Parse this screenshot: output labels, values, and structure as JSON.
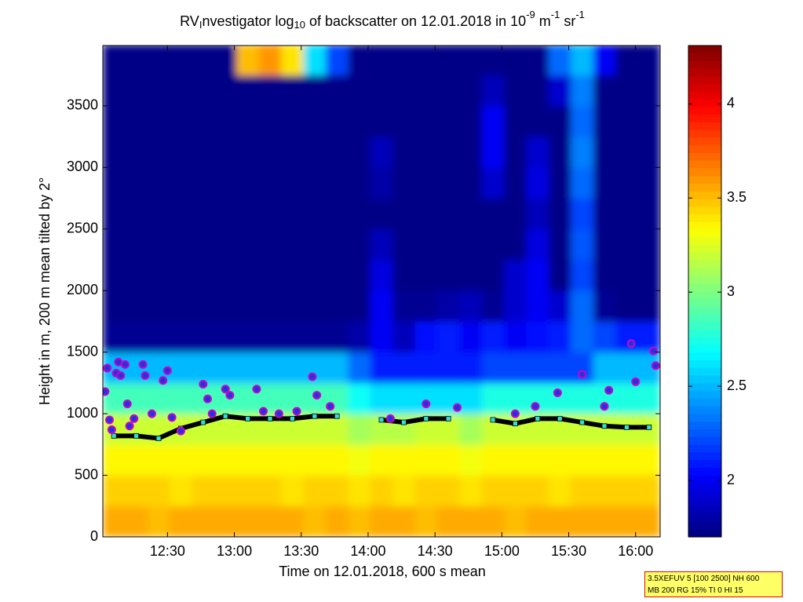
{
  "chart_data": {
    "type": "heatmap",
    "colormap": "jet",
    "title_parts": [
      {
        "text": "RV",
        "style": "normal"
      },
      {
        "text": "I",
        "style": "sub"
      },
      {
        "text": "nvestigator log",
        "style": "normal"
      },
      {
        "text": "10",
        "style": "sub"
      },
      {
        "text": " of backscatter on 12.01.2018 in 10",
        "style": "normal"
      },
      {
        "text": "-9",
        "style": "sup"
      },
      {
        "text": " m",
        "style": "normal"
      },
      {
        "text": "-1",
        "style": "sup"
      },
      {
        "text": " sr",
        "style": "normal"
      },
      {
        "text": "-1",
        "style": "sup"
      }
    ],
    "x_label": "Time on 12.01.2018, 600 s mean",
    "y_label": "Height in m, 200 m mean tilted by 2°",
    "xlim": [
      721,
      971
    ],
    "xticks": [
      {
        "value": 750,
        "label": "12:30"
      },
      {
        "value": 780,
        "label": "13:00"
      },
      {
        "value": 810,
        "label": "13:30"
      },
      {
        "value": 840,
        "label": "14:00"
      },
      {
        "value": 870,
        "label": "14:30"
      },
      {
        "value": 900,
        "label": "15:00"
      },
      {
        "value": 930,
        "label": "15:30"
      },
      {
        "value": 960,
        "label": "16:00"
      }
    ],
    "ylim": [
      0,
      3990
    ],
    "yticks": [
      0,
      500,
      1000,
      1500,
      2000,
      2500,
      3000,
      3500
    ],
    "x_edges": [
      721,
      731,
      741,
      751,
      761,
      771,
      781,
      791,
      801,
      811,
      821,
      831,
      841,
      851,
      861,
      871,
      881,
      891,
      901,
      911,
      921,
      931,
      941,
      951,
      961,
      971
    ],
    "y_edges": [
      0,
      250,
      500,
      750,
      1000,
      1250,
      1500,
      1750,
      2000,
      2250,
      2500,
      2750,
      3000,
      3250,
      3500,
      3750,
      4000
    ],
    "z": [
      [
        3.55,
        3.55,
        3.5,
        3.55,
        3.55,
        3.55,
        3.55,
        3.55,
        3.55,
        3.5,
        3.55,
        3.5,
        3.55,
        3.55,
        3.5,
        3.55,
        3.55,
        3.55,
        3.5,
        3.55,
        3.55,
        3.55,
        3.55,
        3.55,
        3.55
      ],
      [
        3.45,
        3.45,
        3.45,
        3.4,
        3.45,
        3.45,
        3.45,
        3.45,
        3.4,
        3.45,
        3.45,
        3.4,
        3.45,
        3.4,
        3.45,
        3.45,
        3.4,
        3.45,
        3.45,
        3.45,
        3.4,
        3.45,
        3.45,
        3.45,
        3.45
      ],
      [
        3.35,
        3.35,
        3.35,
        3.35,
        3.35,
        3.35,
        3.35,
        3.35,
        3.35,
        3.35,
        3.35,
        3.3,
        3.35,
        3.35,
        3.35,
        3.35,
        3.3,
        3.35,
        3.35,
        3.35,
        3.35,
        3.35,
        3.35,
        3.35,
        3.35
      ],
      [
        3.2,
        3.2,
        3.2,
        3.2,
        3.2,
        3.2,
        3.2,
        3.2,
        3.2,
        3.2,
        3.2,
        3.1,
        3.15,
        3.15,
        3.2,
        3.2,
        3.1,
        3.2,
        3.2,
        3.2,
        3.2,
        3.2,
        3.2,
        3.2,
        3.2
      ],
      [
        2.85,
        2.85,
        2.85,
        2.85,
        2.85,
        2.85,
        2.85,
        2.85,
        2.85,
        2.85,
        2.85,
        2.7,
        2.6,
        2.6,
        2.6,
        2.6,
        2.6,
        2.75,
        2.75,
        2.75,
        2.75,
        2.75,
        2.75,
        2.75,
        2.75
      ],
      [
        2.5,
        2.5,
        2.5,
        2.5,
        2.5,
        2.5,
        2.5,
        2.5,
        2.5,
        2.5,
        2.5,
        2.3,
        2.1,
        2.1,
        2.1,
        2.1,
        2.1,
        2.2,
        2.2,
        2.2,
        2.2,
        2.2,
        2.5,
        2.5,
        2.5
      ],
      [
        1.75,
        1.75,
        1.75,
        1.75,
        1.75,
        1.75,
        1.75,
        1.75,
        1.75,
        1.75,
        1.75,
        1.8,
        2.0,
        1.85,
        2.05,
        2.1,
        2.0,
        2.1,
        2.0,
        2.05,
        2.1,
        2.3,
        2.2,
        2.1,
        2.1
      ],
      [
        1.72,
        1.72,
        1.72,
        1.72,
        1.72,
        1.72,
        1.72,
        1.72,
        1.72,
        1.72,
        1.72,
        1.72,
        2.0,
        1.75,
        1.75,
        1.8,
        1.85,
        1.75,
        1.9,
        2.0,
        1.9,
        2.3,
        1.75,
        1.72,
        1.72
      ],
      [
        1.72,
        1.72,
        1.72,
        1.72,
        1.72,
        1.72,
        1.72,
        1.72,
        1.72,
        1.72,
        1.72,
        1.72,
        1.95,
        1.72,
        1.72,
        1.72,
        1.72,
        1.72,
        1.9,
        2.0,
        1.72,
        2.2,
        1.72,
        1.72,
        1.72
      ],
      [
        1.72,
        1.72,
        1.72,
        1.72,
        1.72,
        1.72,
        1.72,
        1.72,
        1.72,
        1.72,
        1.72,
        1.72,
        1.85,
        1.72,
        1.72,
        1.72,
        1.72,
        1.72,
        1.72,
        1.95,
        1.72,
        2.25,
        1.72,
        1.72,
        1.72
      ],
      [
        1.72,
        1.72,
        1.72,
        1.72,
        1.72,
        1.72,
        1.72,
        1.72,
        1.72,
        1.72,
        1.72,
        1.72,
        1.72,
        1.72,
        1.72,
        1.72,
        1.72,
        1.72,
        1.72,
        1.85,
        1.72,
        2.2,
        1.72,
        1.72,
        1.72
      ],
      [
        1.72,
        1.72,
        1.72,
        1.72,
        1.72,
        1.72,
        1.72,
        1.72,
        1.72,
        1.72,
        1.72,
        1.72,
        1.8,
        1.72,
        1.72,
        1.72,
        1.72,
        1.9,
        1.72,
        1.95,
        1.72,
        2.3,
        1.72,
        1.72,
        1.72
      ],
      [
        1.72,
        1.72,
        1.72,
        1.72,
        1.72,
        1.72,
        1.72,
        1.72,
        1.72,
        1.72,
        1.72,
        1.72,
        1.85,
        1.72,
        1.72,
        1.72,
        1.72,
        2.0,
        1.72,
        1.9,
        1.72,
        2.35,
        1.72,
        1.72,
        1.72
      ],
      [
        1.72,
        1.72,
        1.72,
        1.72,
        1.72,
        1.72,
        1.72,
        1.72,
        1.72,
        1.72,
        1.72,
        1.72,
        1.72,
        1.72,
        1.72,
        1.72,
        1.72,
        2.0,
        1.72,
        1.72,
        1.72,
        2.3,
        1.72,
        1.72,
        1.72
      ],
      [
        1.72,
        1.72,
        1.72,
        1.72,
        1.72,
        1.72,
        1.72,
        1.72,
        1.72,
        1.72,
        1.72,
        1.72,
        1.72,
        1.72,
        1.72,
        1.72,
        1.72,
        1.85,
        1.72,
        1.72,
        1.9,
        2.35,
        1.72,
        1.72,
        1.72
      ],
      [
        1.72,
        1.72,
        1.72,
        1.72,
        1.72,
        1.72,
        3.5,
        3.6,
        3.4,
        2.6,
        2.2,
        1.72,
        1.72,
        1.72,
        1.72,
        1.72,
        1.72,
        1.72,
        1.72,
        1.72,
        2.3,
        2.5,
        2.0,
        1.72,
        1.72
      ]
    ],
    "cloud_base": {
      "color": "#000000",
      "marker_color": "#33dddd",
      "x": [
        726,
        736,
        746,
        756,
        766,
        776,
        786,
        796,
        806,
        816,
        826,
        836,
        846,
        856,
        866,
        876,
        886,
        896,
        906,
        916,
        926,
        936,
        946,
        956,
        966
      ],
      "values": [
        820,
        820,
        800,
        880,
        930,
        980,
        960,
        960,
        960,
        980,
        980,
        null,
        950,
        930,
        960,
        960,
        null,
        950,
        920,
        960,
        960,
        930,
        900,
        890,
        890
      ]
    },
    "cloud_points": {
      "color": "#2233dd",
      "edge_color": "#cc00cc",
      "x": [
        722,
        723,
        724,
        725,
        727,
        728,
        729,
        731,
        732,
        733,
        735,
        739,
        740,
        743,
        748,
        750,
        752,
        756,
        766,
        768,
        770,
        776,
        778,
        790,
        793,
        800,
        808,
        815,
        817,
        823,
        850,
        866,
        880,
        906,
        915,
        925,
        936,
        946,
        948,
        958,
        960,
        968,
        969
      ],
      "values": [
        1180,
        1370,
        950,
        870,
        1330,
        1420,
        1310,
        1400,
        1080,
        900,
        960,
        1400,
        1310,
        1000,
        1270,
        1350,
        970,
        860,
        1240,
        1120,
        1000,
        1200,
        1150,
        1200,
        1020,
        1000,
        1020,
        1300,
        1150,
        1060,
        960,
        1080,
        1050,
        1000,
        1060,
        1170,
        1320,
        1060,
        1190,
        1570,
        1260,
        1510,
        1390
      ]
    },
    "colorbar": {
      "lim": [
        1.7,
        4.31
      ],
      "ticks": [
        2,
        2.5,
        3,
        3.5,
        4
      ]
    },
    "info_lines": [
      "3.5XEFUV 5 [100 2500] NH 600",
      "MB 200 RG 15% TI 0 HI 15"
    ]
  }
}
